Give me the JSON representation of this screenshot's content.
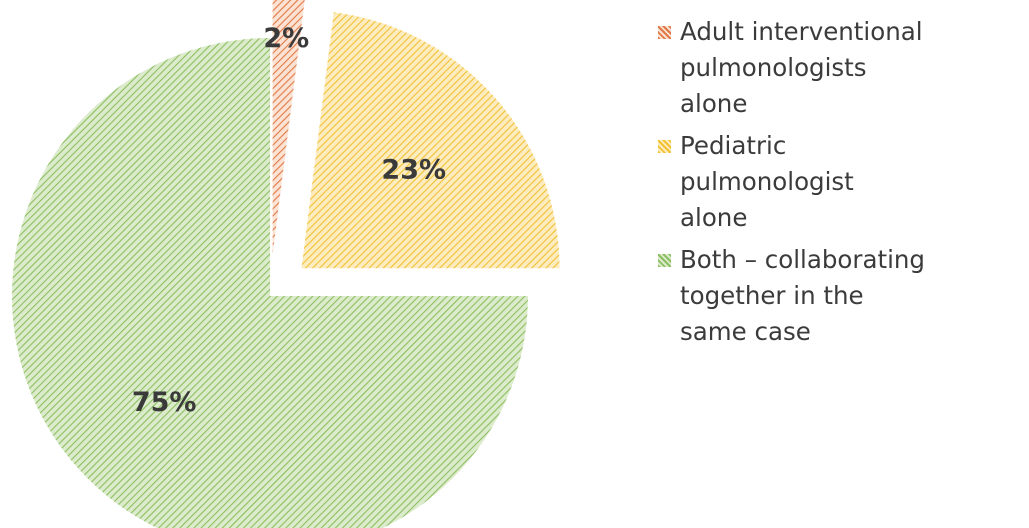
{
  "chart_data": {
    "type": "pie",
    "title": "",
    "slices": [
      {
        "label": "Adult interventional pulmonologists alone",
        "value": 2,
        "data_label": "2%",
        "color": "#e8956a",
        "exploded": true
      },
      {
        "label": "Pediatric pulmonologist alone",
        "value": 23,
        "data_label": "23%",
        "color": "#f5cd55",
        "exploded": true
      },
      {
        "label": "Both – collaborating together in the same case",
        "value": 75,
        "data_label": "75%",
        "color": "#9ccb72",
        "exploded": false
      }
    ],
    "legend": {
      "placement": "right",
      "entries": [
        "Adult interventional\npulmonologists\nalone",
        "Pediatric\npulmonologist\nalone",
        "Both – collaborating\ntogether in the\nsame case"
      ]
    },
    "fill_pattern": "diagonal-hatch"
  }
}
